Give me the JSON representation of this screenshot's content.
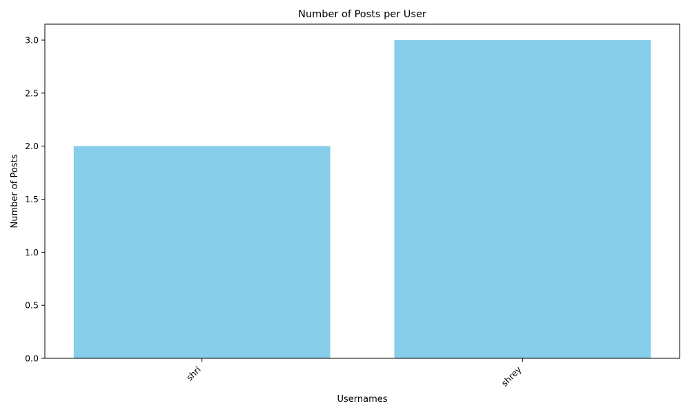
{
  "chart_data": {
    "type": "bar",
    "title": "Number of Posts per User",
    "xlabel": "Usernames",
    "ylabel": "Number of Posts",
    "categories": [
      "shri",
      "shrey"
    ],
    "values": [
      2,
      3
    ],
    "ylim": [
      0,
      3.15
    ],
    "yticks": [
      "0.0",
      "0.5",
      "1.0",
      "1.5",
      "2.0",
      "2.5",
      "3.0"
    ],
    "ytick_values": [
      0,
      0.5,
      1.0,
      1.5,
      2.0,
      2.5,
      3.0
    ],
    "bar_color": "#87CEEB",
    "grid": false,
    "xtick_rotation": "45deg, right-aligned"
  }
}
